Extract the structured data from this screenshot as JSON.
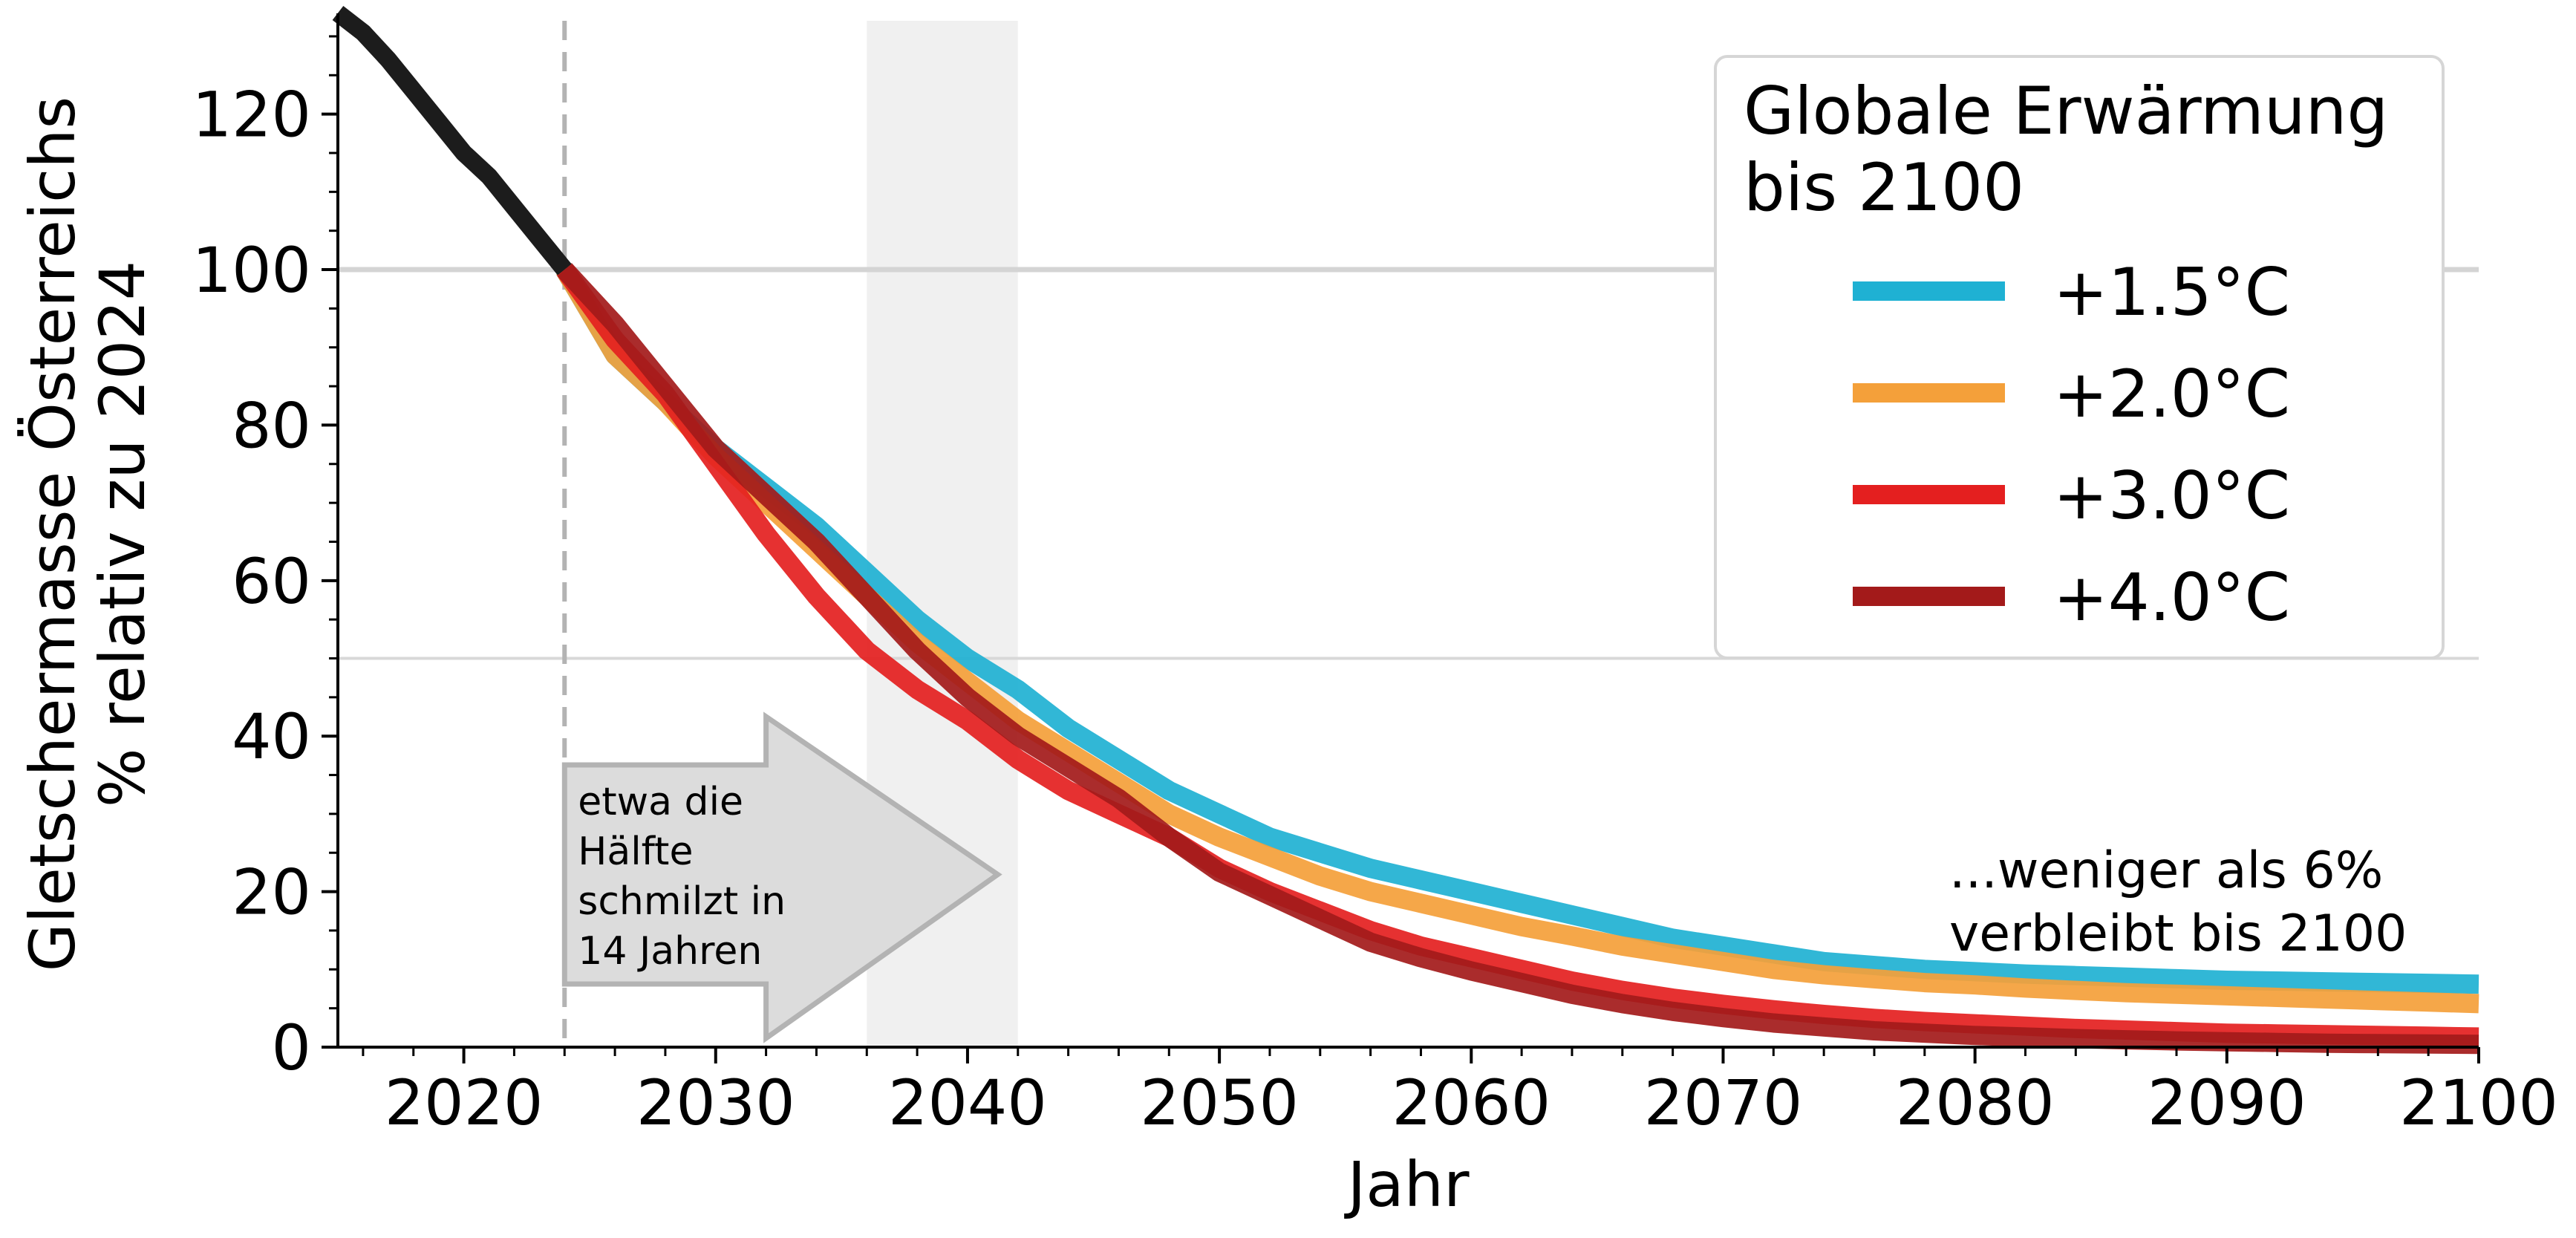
{
  "chart_data": {
    "type": "line",
    "xlabel": "Jahr",
    "ylabel_line1": "Gletschermasse Österreichs",
    "ylabel_line2": "% relativ zu 2024",
    "xlim": [
      2015,
      2100
    ],
    "ylim": [
      0,
      132
    ],
    "x_ticks": [
      2020,
      2030,
      2040,
      2050,
      2060,
      2070,
      2080,
      2090,
      2100
    ],
    "y_ticks": [
      0,
      20,
      40,
      60,
      80,
      100,
      120
    ],
    "hlines": [
      100,
      50
    ],
    "vline_year": 2024,
    "shaded_span": [
      2036,
      2042
    ],
    "legend": {
      "title": "Globale Erwärmung\nbis 2100",
      "placement": "top-right"
    },
    "historical": {
      "color": "#1c1c1c",
      "x": [
        2015,
        2016,
        2017,
        2018,
        2019,
        2020,
        2021,
        2022,
        2023,
        2024
      ],
      "values": [
        133,
        130.5,
        127,
        123,
        119,
        115,
        112,
        108,
        104,
        100
      ]
    },
    "series": [
      {
        "name": "+1.5°C",
        "color": "#1fb1d3",
        "x": [
          2024,
          2026,
          2028,
          2030,
          2032,
          2034,
          2036,
          2038,
          2040,
          2042,
          2044,
          2046,
          2048,
          2050,
          2052,
          2054,
          2056,
          2058,
          2060,
          2062,
          2064,
          2066,
          2068,
          2070,
          2072,
          2074,
          2076,
          2078,
          2080,
          2082,
          2084,
          2086,
          2088,
          2090,
          2092,
          2094,
          2096,
          2098,
          2100
        ],
        "values": [
          100,
          89,
          83,
          77,
          72,
          67,
          61,
          55,
          50,
          46,
          41,
          37,
          33,
          30,
          27,
          25,
          23,
          21.5,
          20,
          18.5,
          17,
          15.5,
          14,
          13,
          12,
          11,
          10.5,
          10,
          9.7,
          9.4,
          9.2,
          9,
          8.8,
          8.6,
          8.5,
          8.4,
          8.3,
          8.2,
          8.1
        ]
      },
      {
        "name": "+2.0°C",
        "color": "#f4a03a",
        "x": [
          2024,
          2026,
          2028,
          2030,
          2032,
          2034,
          2036,
          2038,
          2040,
          2042,
          2044,
          2046,
          2048,
          2050,
          2052,
          2054,
          2056,
          2058,
          2060,
          2062,
          2064,
          2066,
          2068,
          2070,
          2072,
          2074,
          2076,
          2078,
          2080,
          2082,
          2084,
          2086,
          2088,
          2090,
          2092,
          2094,
          2096,
          2098,
          2100
        ],
        "values": [
          100,
          89,
          83,
          76,
          70,
          64,
          58,
          52,
          47,
          42,
          38,
          34,
          30,
          27,
          24.5,
          22,
          20,
          18.5,
          17,
          15.5,
          14.3,
          13,
          12,
          11,
          10,
          9.3,
          8.8,
          8.3,
          8,
          7.6,
          7.3,
          7,
          6.8,
          6.6,
          6.4,
          6.2,
          6,
          5.8,
          5.6
        ]
      },
      {
        "name": "+3.0°C",
        "color": "#e41f1f",
        "x": [
          2024,
          2026,
          2028,
          2030,
          2032,
          2034,
          2036,
          2038,
          2040,
          2042,
          2044,
          2046,
          2048,
          2050,
          2052,
          2054,
          2056,
          2058,
          2060,
          2062,
          2064,
          2066,
          2068,
          2070,
          2072,
          2074,
          2076,
          2078,
          2080,
          2082,
          2084,
          2086,
          2088,
          2090,
          2092,
          2094,
          2096,
          2098,
          2100
        ],
        "values": [
          100,
          91,
          84,
          75,
          66,
          58,
          51,
          46,
          42,
          37,
          33,
          30,
          27,
          23,
          20,
          17.5,
          15,
          13,
          11.5,
          10,
          8.5,
          7.3,
          6.3,
          5.5,
          4.8,
          4.2,
          3.7,
          3.3,
          3,
          2.7,
          2.4,
          2.2,
          2,
          1.8,
          1.7,
          1.6,
          1.5,
          1.4,
          1.3
        ]
      },
      {
        "name": "+4.0°C",
        "color": "#a31a1a",
        "x": [
          2024,
          2026,
          2028,
          2030,
          2032,
          2034,
          2036,
          2038,
          2040,
          2042,
          2044,
          2046,
          2048,
          2050,
          2052,
          2054,
          2056,
          2058,
          2060,
          2062,
          2064,
          2066,
          2068,
          2070,
          2072,
          2074,
          2076,
          2078,
          2080,
          2082,
          2084,
          2086,
          2088,
          2090,
          2092,
          2094,
          2096,
          2098,
          2100
        ],
        "values": [
          100,
          93,
          85,
          77,
          71,
          65,
          58,
          51,
          45,
          40,
          36,
          32,
          27,
          22.5,
          19.5,
          16.5,
          13.5,
          11.5,
          9.8,
          8.3,
          6.8,
          5.6,
          4.6,
          3.8,
          3.1,
          2.6,
          2.1,
          1.8,
          1.5,
          1.3,
          1.1,
          0.95,
          0.8,
          0.7,
          0.6,
          0.5,
          0.45,
          0.4,
          0.35
        ]
      }
    ],
    "annotations": {
      "arrow_text": [
        "etwa die",
        "Hälfte",
        "schmilzt in",
        "14 Jahren"
      ],
      "arrow_span": [
        2024,
        2040
      ],
      "end_text": [
        "...weniger als 6%",
        "verbleibt bis 2100"
      ]
    }
  }
}
